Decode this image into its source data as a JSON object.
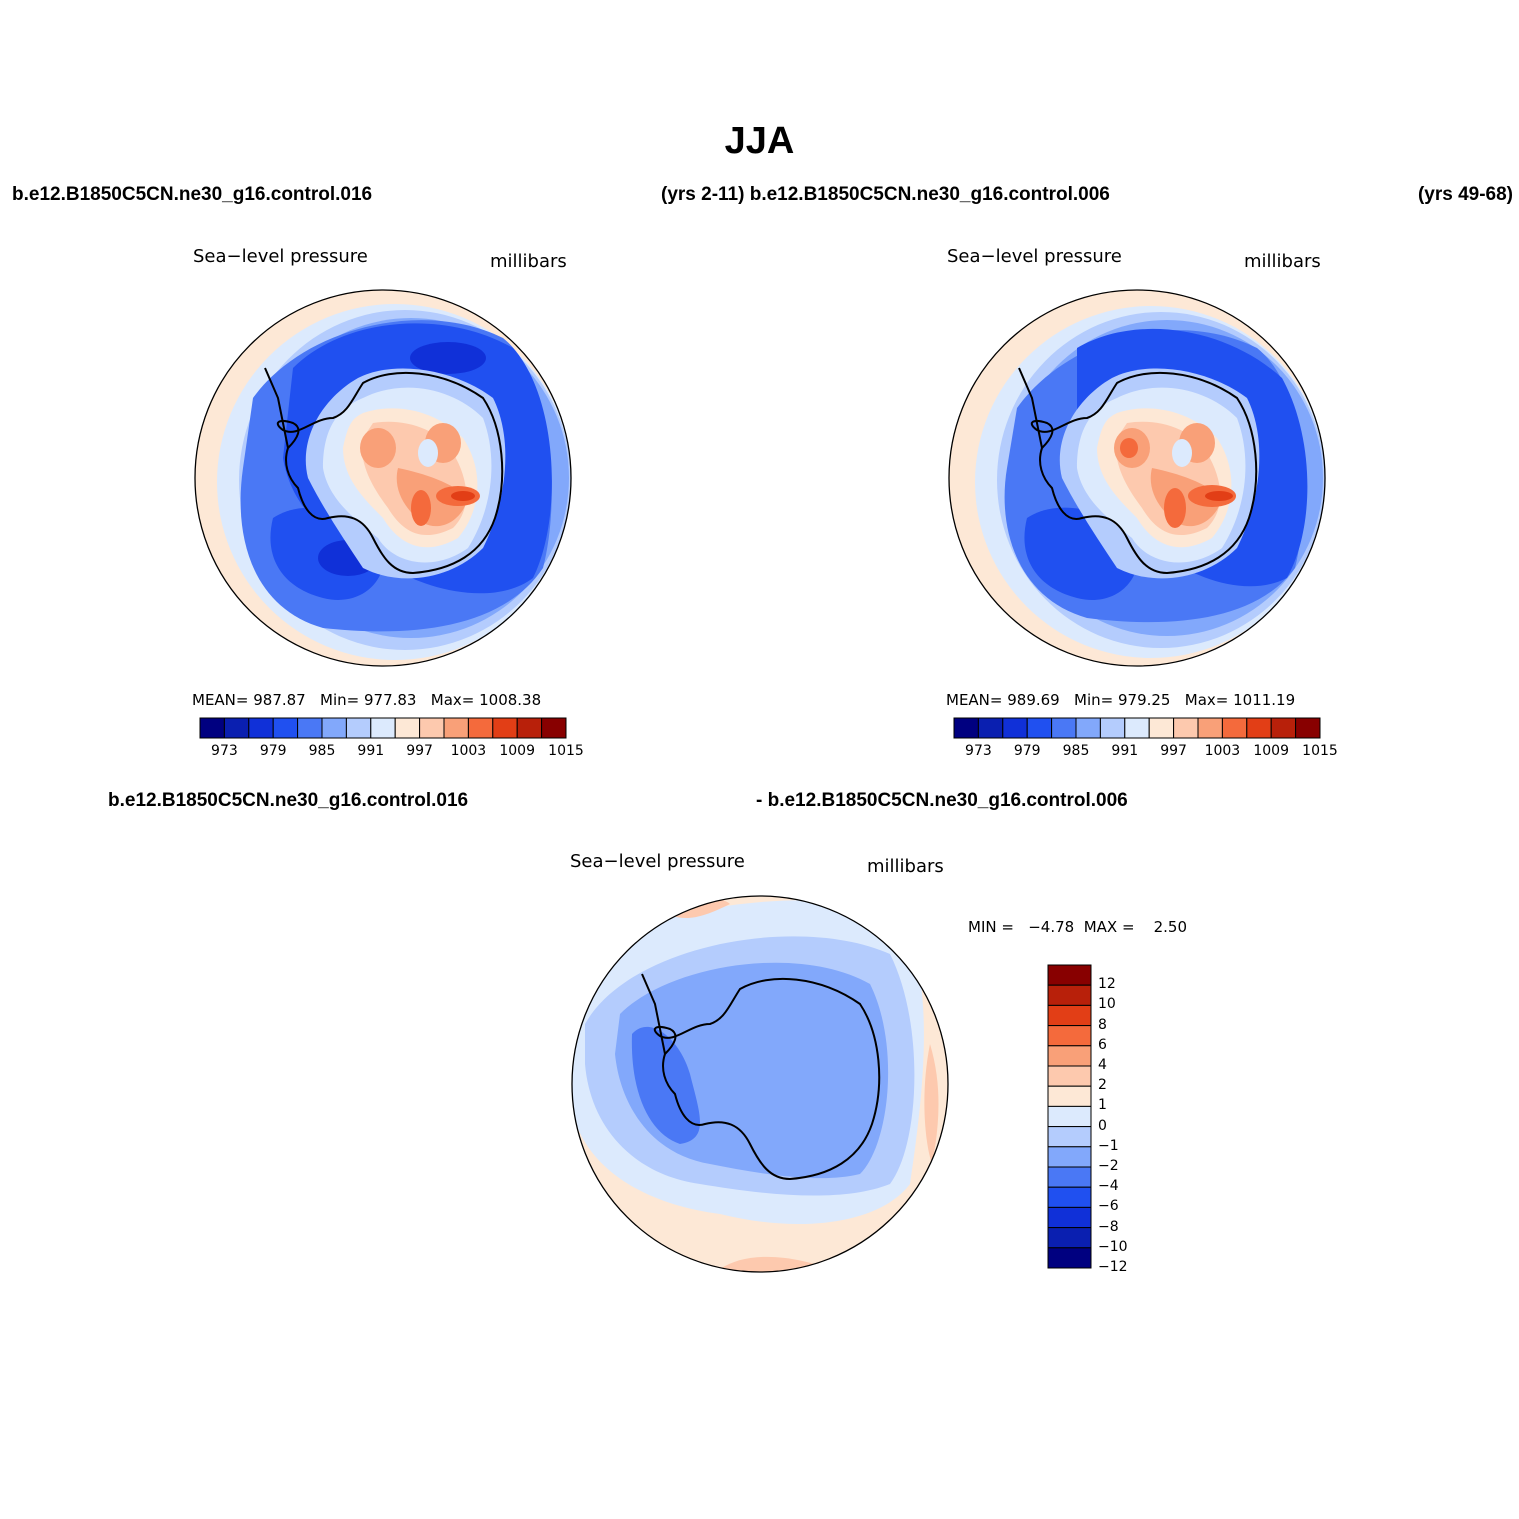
{
  "figure": {
    "title": "JJA",
    "header_left_case": "b.e12.B1850C5CN.ne30_g16.control.016",
    "header_mid": "(yrs 2-11) b.e12.B1850C5CN.ne30_g16.control.006",
    "header_right": "(yrs 49-68)",
    "diff_case_a": "b.e12.B1850C5CN.ne30_g16.control.016",
    "diff_case_b": "- b.e12.B1850C5CN.ne30_g16.control.006"
  },
  "colors": {
    "abs_scale": [
      "#000080",
      "#0a1fb0",
      "#1030d8",
      "#2050f0",
      "#4a78f5",
      "#82a8fb",
      "#b4ccfd",
      "#dceafd",
      "#fde8d6",
      "#fdc9ae",
      "#f9a078",
      "#f46a3c",
      "#e23e16",
      "#b8200a",
      "#880000"
    ],
    "diff_scale": [
      "#000080",
      "#0a1fb0",
      "#1030d8",
      "#2050f0",
      "#4a78f5",
      "#82a8fb",
      "#b4ccfd",
      "#dceafd",
      "#fde8d6",
      "#fdc9ae",
      "#f9a078",
      "#f46a3c",
      "#e23e16",
      "#b8200a",
      "#880000"
    ]
  },
  "panels": {
    "left": {
      "variable": "Sea−level pressure",
      "units": "millibars",
      "stats": "MEAN= 987.87   Min= 977.83   Max= 1008.38"
    },
    "right": {
      "variable": "Sea−level pressure",
      "units": "millibars",
      "stats": "MEAN= 989.69   Min= 979.25   Max= 1011.19"
    },
    "diff": {
      "variable": "Sea−level pressure",
      "units": "millibars",
      "stats": "MIN =   −4.78  MAX =    2.50"
    }
  },
  "chart_data": [
    {
      "type": "heatmap",
      "title": "Sea−level pressure",
      "units": "millibars",
      "stats": {
        "mean": 987.87,
        "min": 977.83,
        "max": 1008.38
      },
      "colorbar_ticks": [
        "973",
        "979",
        "985",
        "991",
        "997",
        "1003",
        "1009",
        "1015"
      ]
    },
    {
      "type": "heatmap",
      "title": "Sea−level pressure",
      "units": "millibars",
      "stats": {
        "mean": 989.69,
        "min": 979.25,
        "max": 1011.19
      },
      "colorbar_ticks": [
        "973",
        "979",
        "985",
        "991",
        "997",
        "1003",
        "1009",
        "1015"
      ]
    },
    {
      "type": "heatmap",
      "title": "Sea−level pressure",
      "units": "millibars",
      "stats": {
        "min": -4.78,
        "max": 2.5
      },
      "colorbar_ticks": [
        "12",
        "10",
        "8",
        "6",
        "4",
        "2",
        "1",
        "0",
        "−1",
        "−2",
        "−4",
        "−6",
        "−8",
        "−10",
        "−12"
      ]
    }
  ]
}
